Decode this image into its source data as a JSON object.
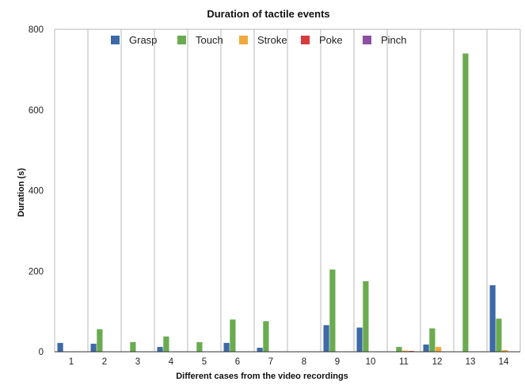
{
  "chart_data": {
    "type": "bar",
    "title": "Duration of tactile events",
    "xlabel": "Different cases from the video recordings",
    "ylabel": "Duration (s)",
    "ylim": [
      0,
      800
    ],
    "yticks": [
      "0",
      "200",
      "400",
      "600",
      "800"
    ],
    "grid": "vertical",
    "legend_position": "top",
    "categories": [
      "1",
      "2",
      "3",
      "4",
      "5",
      "6",
      "7",
      "8",
      "9",
      "10",
      "11",
      "12",
      "13",
      "14"
    ],
    "series": [
      {
        "name": "Grasp",
        "color": "#3d6aa6",
        "values": [
          22,
          20,
          0,
          12,
          0,
          22,
          10,
          0,
          66,
          60,
          0,
          18,
          0,
          165
        ]
      },
      {
        "name": "Touch",
        "color": "#6aab4f",
        "values": [
          0,
          56,
          24,
          38,
          24,
          80,
          76,
          0,
          204,
          175,
          12,
          58,
          740,
          82
        ]
      },
      {
        "name": "Stroke",
        "color": "#f0a93c",
        "values": [
          0,
          0,
          0,
          0,
          0,
          0,
          0,
          0,
          0,
          0,
          3,
          12,
          0,
          4
        ]
      },
      {
        "name": "Poke",
        "color": "#d93b3b",
        "values": [
          0,
          0,
          0,
          0,
          0,
          0,
          0,
          0,
          0,
          0,
          2,
          0,
          0,
          0
        ]
      },
      {
        "name": "Pinch",
        "color": "#8e4fa3",
        "values": [
          0,
          0,
          0,
          0,
          0,
          0,
          0,
          0,
          0,
          0,
          0,
          0,
          0,
          0
        ]
      }
    ]
  }
}
